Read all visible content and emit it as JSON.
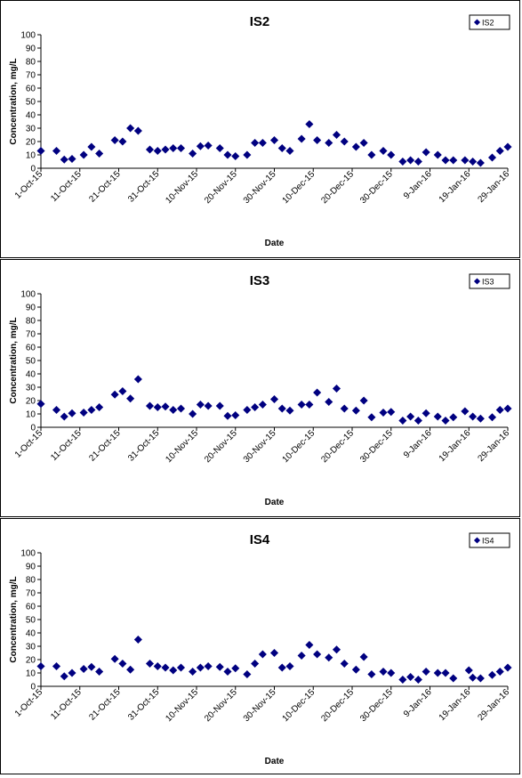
{
  "chart_data": [
    {
      "type": "scatter",
      "title": "IS2",
      "xlabel": "Date",
      "ylabel": "Concentration, mg/L",
      "ylim": [
        0,
        100
      ],
      "yticks": [
        "0",
        "10",
        "20",
        "30",
        "40",
        "50",
        "60",
        "70",
        "80",
        "90",
        "100"
      ],
      "xticks": [
        "1-Oct-15",
        "11-Oct-15",
        "21-Oct-15",
        "31-Oct-15",
        "10-Nov-15",
        "20-Nov-15",
        "30-Nov-15",
        "10-Dec-15",
        "20-Dec-15",
        "30-Dec-15",
        "9-Jan-16",
        "19-Jan-16",
        "29-Jan-16"
      ],
      "xlim": [
        "2015-10-01",
        "2016-01-29"
      ],
      "grid": false,
      "legend_position": "top-right",
      "color": "#000080",
      "series": [
        {
          "name": "IS2",
          "points": [
            [
              "2015-10-01",
              13
            ],
            [
              "2015-10-05",
              13
            ],
            [
              "2015-10-07",
              6.5
            ],
            [
              "2015-10-09",
              7
            ],
            [
              "2015-10-12",
              10
            ],
            [
              "2015-10-14",
              16
            ],
            [
              "2015-10-16",
              11
            ],
            [
              "2015-10-20",
              21
            ],
            [
              "2015-10-22",
              20
            ],
            [
              "2015-10-24",
              30
            ],
            [
              "2015-10-26",
              28
            ],
            [
              "2015-10-29",
              14
            ],
            [
              "2015-10-31",
              13
            ],
            [
              "2015-11-02",
              14
            ],
            [
              "2015-11-04",
              15
            ],
            [
              "2015-11-06",
              15
            ],
            [
              "2015-11-09",
              11
            ],
            [
              "2015-11-11",
              16.5
            ],
            [
              "2015-11-13",
              17
            ],
            [
              "2015-11-16",
              15
            ],
            [
              "2015-11-18",
              10
            ],
            [
              "2015-11-20",
              9
            ],
            [
              "2015-11-23",
              10
            ],
            [
              "2015-11-25",
              19
            ],
            [
              "2015-11-27",
              19
            ],
            [
              "2015-11-30",
              21
            ],
            [
              "2015-12-02",
              15
            ],
            [
              "2015-12-04",
              13
            ],
            [
              "2015-12-07",
              22
            ],
            [
              "2015-12-09",
              33
            ],
            [
              "2015-12-11",
              21
            ],
            [
              "2015-12-14",
              19
            ],
            [
              "2015-12-16",
              25
            ],
            [
              "2015-12-18",
              20
            ],
            [
              "2015-12-21",
              16
            ],
            [
              "2015-12-23",
              19
            ],
            [
              "2015-12-25",
              10
            ],
            [
              "2015-12-28",
              13
            ],
            [
              "2015-12-30",
              10
            ],
            [
              "2016-01-02",
              5
            ],
            [
              "2016-01-04",
              6
            ],
            [
              "2016-01-06",
              5
            ],
            [
              "2016-01-08",
              12
            ],
            [
              "2016-01-11",
              10
            ],
            [
              "2016-01-13",
              6
            ],
            [
              "2016-01-15",
              6
            ],
            [
              "2016-01-18",
              6
            ],
            [
              "2016-01-20",
              5
            ],
            [
              "2016-01-22",
              4
            ],
            [
              "2016-01-25",
              8
            ],
            [
              "2016-01-27",
              13
            ],
            [
              "2016-01-29",
              16
            ]
          ]
        }
      ]
    },
    {
      "type": "scatter",
      "title": "IS3",
      "xlabel": "Date",
      "ylabel": "Concentration, mg/L",
      "ylim": [
        0,
        100
      ],
      "yticks": [
        "0",
        "10",
        "20",
        "30",
        "40",
        "50",
        "60",
        "70",
        "80",
        "90",
        "100"
      ],
      "xticks": [
        "1-Oct-15",
        "11-Oct-15",
        "21-Oct-15",
        "31-Oct-15",
        "10-Nov-15",
        "20-Nov-15",
        "30-Nov-15",
        "10-Dec-15",
        "20-Dec-15",
        "30-Dec-15",
        "9-Jan-16",
        "19-Jan-16",
        "29-Jan-16"
      ],
      "xlim": [
        "2015-10-01",
        "2016-01-29"
      ],
      "grid": false,
      "legend_position": "top-right",
      "color": "#000080",
      "series": [
        {
          "name": "IS3",
          "points": [
            [
              "2015-10-01",
              17.5
            ],
            [
              "2015-10-05",
              13
            ],
            [
              "2015-10-07",
              8
            ],
            [
              "2015-10-09",
              10.5
            ],
            [
              "2015-10-12",
              11
            ],
            [
              "2015-10-14",
              13
            ],
            [
              "2015-10-16",
              15
            ],
            [
              "2015-10-20",
              24.5
            ],
            [
              "2015-10-22",
              27
            ],
            [
              "2015-10-24",
              21.5
            ],
            [
              "2015-10-26",
              36
            ],
            [
              "2015-10-29",
              16
            ],
            [
              "2015-10-31",
              15
            ],
            [
              "2015-11-02",
              15.5
            ],
            [
              "2015-11-04",
              13
            ],
            [
              "2015-11-06",
              14
            ],
            [
              "2015-11-09",
              10
            ],
            [
              "2015-11-11",
              17
            ],
            [
              "2015-11-13",
              16
            ],
            [
              "2015-11-16",
              16
            ],
            [
              "2015-11-18",
              8.5
            ],
            [
              "2015-11-20",
              9
            ],
            [
              "2015-11-23",
              13
            ],
            [
              "2015-11-25",
              15
            ],
            [
              "2015-11-27",
              17
            ],
            [
              "2015-11-30",
              21
            ],
            [
              "2015-12-02",
              14
            ],
            [
              "2015-12-04",
              12.5
            ],
            [
              "2015-12-07",
              17
            ],
            [
              "2015-12-09",
              17
            ],
            [
              "2015-12-11",
              26
            ],
            [
              "2015-12-14",
              19
            ],
            [
              "2015-12-16",
              29
            ],
            [
              "2015-12-18",
              14
            ],
            [
              "2015-12-21",
              12.5
            ],
            [
              "2015-12-23",
              20
            ],
            [
              "2015-12-25",
              7.5
            ],
            [
              "2015-12-28",
              11
            ],
            [
              "2015-12-30",
              11.5
            ],
            [
              "2016-01-02",
              5
            ],
            [
              "2016-01-04",
              8
            ],
            [
              "2016-01-06",
              5
            ],
            [
              "2016-01-08",
              10.5
            ],
            [
              "2016-01-11",
              8
            ],
            [
              "2016-01-13",
              5
            ],
            [
              "2016-01-15",
              7.5
            ],
            [
              "2016-01-18",
              12
            ],
            [
              "2016-01-20",
              8
            ],
            [
              "2016-01-22",
              6.5
            ],
            [
              "2016-01-25",
              7.5
            ],
            [
              "2016-01-27",
              13
            ],
            [
              "2016-01-29",
              14
            ]
          ]
        }
      ]
    },
    {
      "type": "scatter",
      "title": "IS4",
      "xlabel": "Date",
      "ylabel": "Concentration, mg/L",
      "ylim": [
        0,
        100
      ],
      "yticks": [
        "0",
        "10",
        "20",
        "30",
        "40",
        "50",
        "60",
        "70",
        "80",
        "90",
        "100"
      ],
      "xticks": [
        "1-Oct-15",
        "11-Oct-15",
        "21-Oct-15",
        "31-Oct-15",
        "10-Nov-15",
        "20-Nov-15",
        "30-Nov-15",
        "10-Dec-15",
        "20-Dec-15",
        "30-Dec-15",
        "9-Jan-16",
        "19-Jan-16",
        "29-Jan-16"
      ],
      "xlim": [
        "2015-10-01",
        "2016-01-29"
      ],
      "grid": false,
      "legend_position": "top-right",
      "color": "#000080",
      "series": [
        {
          "name": "IS4",
          "points": [
            [
              "2015-10-01",
              15
            ],
            [
              "2015-10-05",
              15
            ],
            [
              "2015-10-07",
              7.5
            ],
            [
              "2015-10-09",
              10
            ],
            [
              "2015-10-12",
              13
            ],
            [
              "2015-10-14",
              14.5
            ],
            [
              "2015-10-16",
              11
            ],
            [
              "2015-10-20",
              20.5
            ],
            [
              "2015-10-22",
              17
            ],
            [
              "2015-10-24",
              12.5
            ],
            [
              "2015-10-26",
              35
            ],
            [
              "2015-10-29",
              17
            ],
            [
              "2015-10-31",
              15
            ],
            [
              "2015-11-02",
              14
            ],
            [
              "2015-11-04",
              12
            ],
            [
              "2015-11-06",
              14
            ],
            [
              "2015-11-09",
              11
            ],
            [
              "2015-11-11",
              14
            ],
            [
              "2015-11-13",
              15
            ],
            [
              "2015-11-16",
              14.5
            ],
            [
              "2015-11-18",
              11
            ],
            [
              "2015-11-20",
              13.5
            ],
            [
              "2015-11-23",
              9
            ],
            [
              "2015-11-25",
              17
            ],
            [
              "2015-11-27",
              24
            ],
            [
              "2015-11-30",
              25
            ],
            [
              "2015-12-02",
              14
            ],
            [
              "2015-12-04",
              15
            ],
            [
              "2015-12-07",
              23
            ],
            [
              "2015-12-09",
              31
            ],
            [
              "2015-12-11",
              24
            ],
            [
              "2015-12-14",
              21.5
            ],
            [
              "2015-12-16",
              27.5
            ],
            [
              "2015-12-18",
              17
            ],
            [
              "2015-12-21",
              12.5
            ],
            [
              "2015-12-23",
              22
            ],
            [
              "2015-12-25",
              9
            ],
            [
              "2015-12-28",
              11
            ],
            [
              "2015-12-30",
              10
            ],
            [
              "2016-01-02",
              5
            ],
            [
              "2016-01-04",
              7
            ],
            [
              "2016-01-06",
              5
            ],
            [
              "2016-01-08",
              11
            ],
            [
              "2016-01-11",
              10
            ],
            [
              "2016-01-13",
              10
            ],
            [
              "2016-01-15",
              6
            ],
            [
              "2016-01-19",
              12
            ],
            [
              "2016-01-20",
              6.5
            ],
            [
              "2016-01-22",
              6
            ],
            [
              "2016-01-25",
              8.5
            ],
            [
              "2016-01-27",
              11
            ],
            [
              "2016-01-29",
              14
            ]
          ]
        }
      ]
    }
  ]
}
